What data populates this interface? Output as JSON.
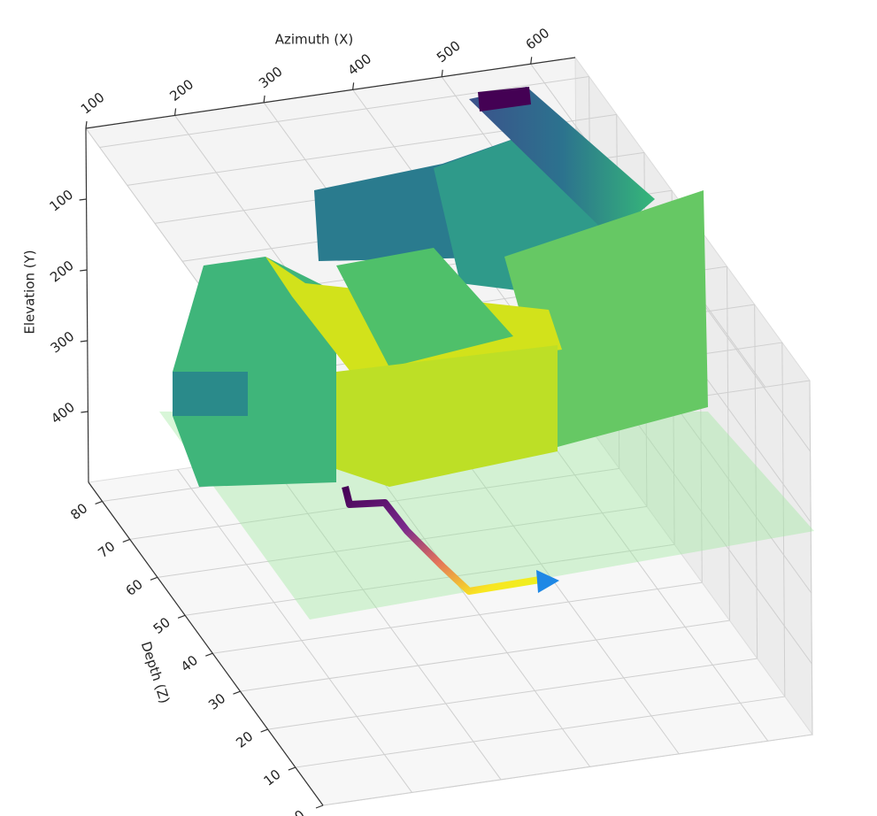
{
  "chart_data": {
    "type": "surface3d",
    "xlabel": "Azimuth (X)",
    "ylabel": "Elevation (Y)",
    "zlabel": "Depth (Z)",
    "xlim": [
      100,
      650
    ],
    "xticks": [
      100,
      200,
      300,
      400,
      500,
      600
    ],
    "ylim": [
      0,
      500
    ],
    "yticks": [
      100,
      200,
      300,
      400
    ],
    "zlim": [
      0,
      85
    ],
    "zticks": [
      0,
      10,
      20,
      30,
      40,
      50,
      60,
      70,
      80
    ],
    "grid": true
  }
}
